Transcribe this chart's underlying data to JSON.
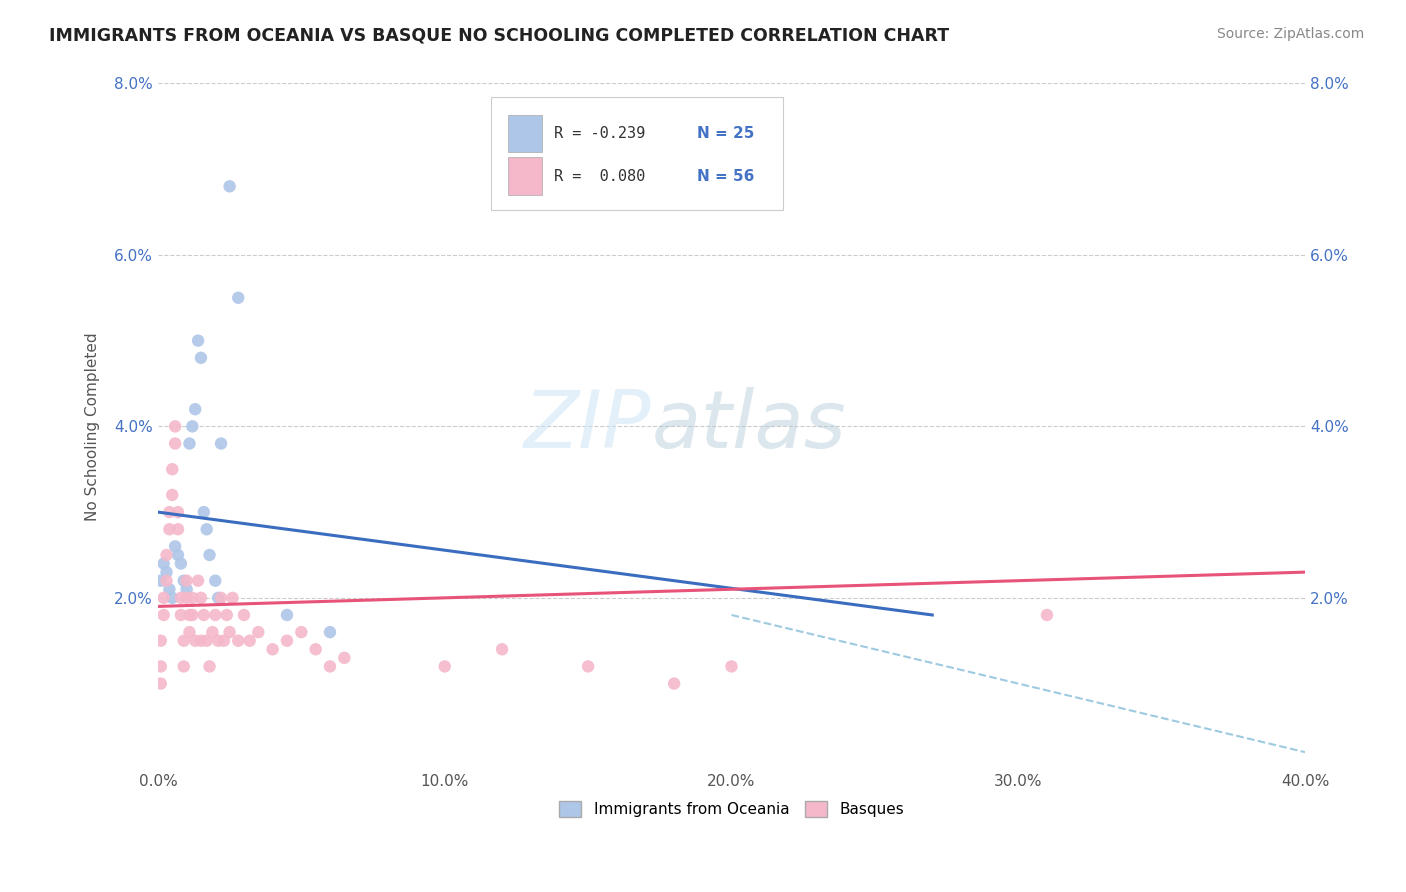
{
  "title": "IMMIGRANTS FROM OCEANIA VS BASQUE NO SCHOOLING COMPLETED CORRELATION CHART",
  "source": "Source: ZipAtlas.com",
  "ylabel": "No Schooling Completed",
  "xmin": 0.0,
  "xmax": 0.4,
  "ymin": 0.0,
  "ymax": 0.08,
  "x_ticks": [
    0.0,
    0.1,
    0.2,
    0.3,
    0.4
  ],
  "x_tick_labels": [
    "0.0%",
    "10.0%",
    "20.0%",
    "30.0%",
    "40.0%"
  ],
  "y_ticks": [
    0.0,
    0.02,
    0.04,
    0.06,
    0.08
  ],
  "y_tick_labels_left": [
    "",
    "2.0%",
    "4.0%",
    "6.0%",
    "8.0%"
  ],
  "y_tick_labels_right": [
    "",
    "2.0%",
    "4.0%",
    "6.0%",
    "8.0%"
  ],
  "legend_labels": [
    "Immigrants from Oceania",
    "Basques"
  ],
  "legend_R": [
    "R = -0.239",
    "R =  0.080"
  ],
  "legend_N": [
    "N = 25",
    "N = 56"
  ],
  "color_blue": "#aec6e8",
  "color_pink": "#f4b8ca",
  "line_blue": "#3a6dbf",
  "line_pink": "#e8537a",
  "line_dashed_color": "#9ecae1",
  "watermark_zip": "ZIP",
  "watermark_atlas": "atlas",
  "blue_scatter_x": [
    0.001,
    0.002,
    0.003,
    0.004,
    0.005,
    0.006,
    0.007,
    0.008,
    0.009,
    0.01,
    0.011,
    0.012,
    0.013,
    0.014,
    0.015,
    0.016,
    0.017,
    0.018,
    0.02,
    0.021,
    0.022,
    0.025,
    0.028,
    0.045,
    0.06
  ],
  "blue_scatter_y": [
    0.022,
    0.024,
    0.023,
    0.021,
    0.02,
    0.026,
    0.025,
    0.024,
    0.022,
    0.021,
    0.038,
    0.04,
    0.042,
    0.05,
    0.048,
    0.03,
    0.028,
    0.025,
    0.022,
    0.02,
    0.038,
    0.068,
    0.055,
    0.018,
    0.016
  ],
  "pink_scatter_x": [
    0.001,
    0.001,
    0.001,
    0.002,
    0.002,
    0.003,
    0.003,
    0.004,
    0.004,
    0.005,
    0.005,
    0.006,
    0.006,
    0.007,
    0.007,
    0.008,
    0.008,
    0.009,
    0.009,
    0.01,
    0.01,
    0.011,
    0.011,
    0.012,
    0.012,
    0.013,
    0.014,
    0.015,
    0.015,
    0.016,
    0.017,
    0.018,
    0.019,
    0.02,
    0.021,
    0.022,
    0.023,
    0.024,
    0.025,
    0.026,
    0.028,
    0.03,
    0.032,
    0.035,
    0.04,
    0.045,
    0.05,
    0.055,
    0.06,
    0.065,
    0.1,
    0.12,
    0.15,
    0.18,
    0.2,
    0.31
  ],
  "pink_scatter_y": [
    0.015,
    0.012,
    0.01,
    0.02,
    0.018,
    0.025,
    0.022,
    0.03,
    0.028,
    0.035,
    0.032,
    0.04,
    0.038,
    0.03,
    0.028,
    0.02,
    0.018,
    0.015,
    0.012,
    0.022,
    0.02,
    0.018,
    0.016,
    0.02,
    0.018,
    0.015,
    0.022,
    0.02,
    0.015,
    0.018,
    0.015,
    0.012,
    0.016,
    0.018,
    0.015,
    0.02,
    0.015,
    0.018,
    0.016,
    0.02,
    0.015,
    0.018,
    0.015,
    0.016,
    0.014,
    0.015,
    0.016,
    0.014,
    0.012,
    0.013,
    0.012,
    0.014,
    0.012,
    0.01,
    0.012,
    0.018
  ],
  "blue_line_x": [
    0.0,
    0.27
  ],
  "blue_line_y": [
    0.03,
    0.018
  ],
  "pink_line_x": [
    0.0,
    0.4
  ],
  "pink_line_y": [
    0.019,
    0.023
  ],
  "dashed_line_x": [
    0.2,
    0.4
  ],
  "dashed_line_y": [
    0.018,
    0.002
  ]
}
